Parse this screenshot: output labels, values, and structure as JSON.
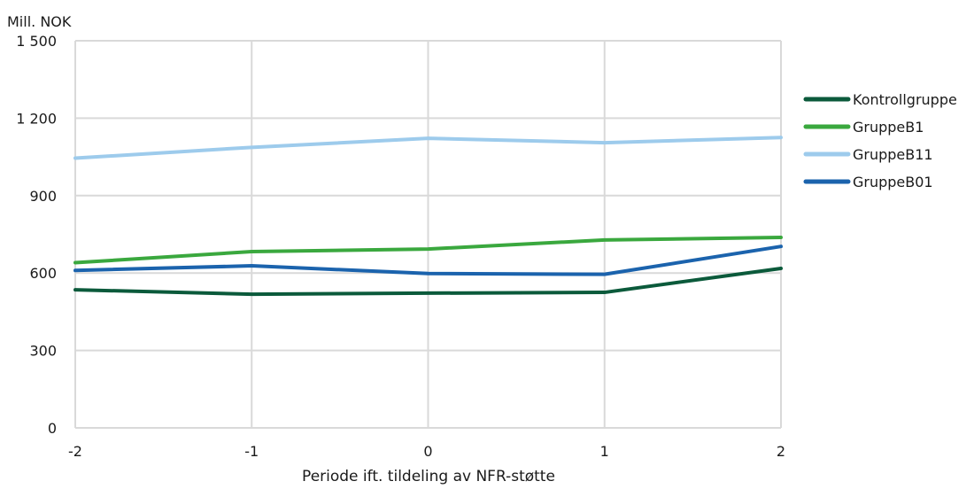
{
  "chart_data": {
    "type": "line",
    "ylabel": "Mill. NOK",
    "xlabel": "Periode ift. tildeling av NFR-støtte",
    "x": [
      -2,
      -1,
      0,
      1,
      2
    ],
    "x_tick_labels": [
      "-2",
      "-1",
      "0",
      "1",
      "2"
    ],
    "ylim": [
      0,
      1500
    ],
    "y_ticks": [
      0,
      300,
      600,
      900,
      1200,
      1500
    ],
    "y_tick_labels": [
      "0",
      "300",
      "600",
      "900",
      "1 200",
      "1 500"
    ],
    "grid": true,
    "legend_position": "right",
    "series": [
      {
        "name": "Kontrollgruppe",
        "color": "#0b5a3b",
        "values": [
          535,
          518,
          522,
          525,
          618
        ]
      },
      {
        "name": "GruppeB1",
        "color": "#3aa83e",
        "values": [
          640,
          683,
          693,
          728,
          738
        ]
      },
      {
        "name": "GruppeB11",
        "color": "#9dcbec",
        "values": [
          1045,
          1087,
          1122,
          1105,
          1125
        ]
      },
      {
        "name": "GruppeB01",
        "color": "#1b63ad",
        "values": [
          610,
          628,
          598,
          595,
          703
        ]
      }
    ]
  }
}
